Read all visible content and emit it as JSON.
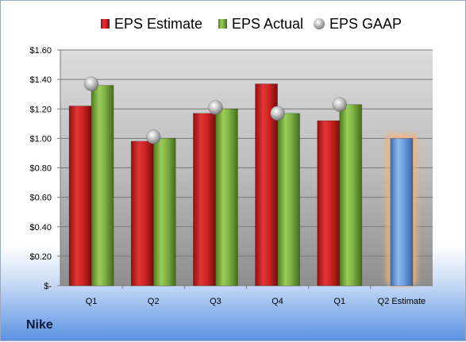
{
  "company": "Nike",
  "chart_data": {
    "type": "bar",
    "categories": [
      "Q1",
      "Q2",
      "Q3",
      "Q4",
      "Q1",
      "Q2 Estimate"
    ],
    "series": [
      {
        "name": "EPS Estimate",
        "type": "bar",
        "color": "#d42a2a",
        "values": [
          1.22,
          0.98,
          1.17,
          1.37,
          1.12,
          null
        ]
      },
      {
        "name": "EPS Actual",
        "type": "bar",
        "color": "#7db041",
        "values": [
          1.36,
          1.0,
          1.2,
          1.17,
          1.23,
          null
        ]
      },
      {
        "name": "EPS GAAP",
        "type": "scatter",
        "color": "#b4b4b4",
        "values": [
          1.37,
          1.01,
          1.21,
          1.17,
          1.23,
          null
        ]
      },
      {
        "name": "Q2 Estimate",
        "type": "bar",
        "color": "#6f9fdc",
        "highlight": "#f4b27a",
        "values": [
          null,
          null,
          null,
          null,
          null,
          1.0
        ]
      }
    ],
    "yticks": [
      "$-",
      "$0.20",
      "$0.40",
      "$0.60",
      "$0.80",
      "$1.00",
      "$1.20",
      "$1.40",
      "$1.60"
    ],
    "ylim": [
      0,
      1.6
    ],
    "grid": true,
    "legend_position": "top"
  }
}
